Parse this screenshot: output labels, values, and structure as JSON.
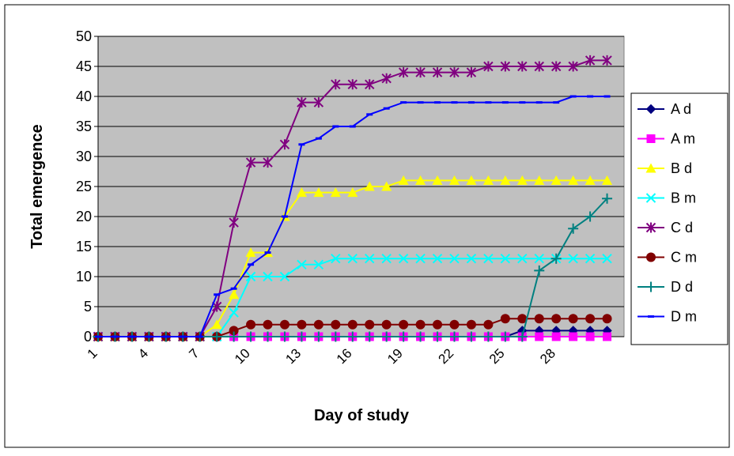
{
  "chart_data": {
    "type": "line",
    "title": "",
    "xlabel": "Day of study",
    "ylabel": "Total emergence",
    "x": [
      1,
      2,
      3,
      4,
      5,
      6,
      7,
      8,
      9,
      10,
      11,
      12,
      13,
      14,
      15,
      16,
      17,
      18,
      19,
      20,
      21,
      22,
      23,
      24,
      25,
      26,
      27,
      28,
      29,
      30,
      31
    ],
    "x_tick_labels": [
      "1",
      "4",
      "7",
      "10",
      "13",
      "16",
      "19",
      "22",
      "25",
      "28"
    ],
    "x_tick_values": [
      1,
      4,
      7,
      10,
      13,
      16,
      19,
      22,
      25,
      28
    ],
    "ylim": [
      0,
      50
    ],
    "y_ticks": [
      0,
      5,
      10,
      15,
      20,
      25,
      30,
      35,
      40,
      45,
      50
    ],
    "grid": "horizontal",
    "legend_position": "right",
    "plot_background": "#c0c0c0",
    "series": [
      {
        "name": "A d",
        "color": "#000080",
        "marker": "diamond",
        "values": [
          0,
          0,
          0,
          0,
          0,
          0,
          0,
          0,
          0,
          0,
          0,
          0,
          0,
          0,
          0,
          0,
          0,
          0,
          0,
          0,
          0,
          0,
          0,
          0,
          0,
          1,
          1,
          1,
          1,
          1,
          1
        ]
      },
      {
        "name": "A m",
        "color": "#ff00ff",
        "marker": "square",
        "values": [
          0,
          0,
          0,
          0,
          0,
          0,
          0,
          0,
          0,
          0,
          0,
          0,
          0,
          0,
          0,
          0,
          0,
          0,
          0,
          0,
          0,
          0,
          0,
          0,
          0,
          0,
          0,
          0,
          0,
          0,
          0
        ]
      },
      {
        "name": "B d",
        "color": "#ffff00",
        "marker": "triangle",
        "values": [
          0,
          0,
          0,
          0,
          0,
          0,
          0,
          2,
          7,
          14,
          14,
          20,
          24,
          24,
          24,
          24,
          25,
          25,
          26,
          26,
          26,
          26,
          26,
          26,
          26,
          26,
          26,
          26,
          26,
          26,
          26
        ]
      },
      {
        "name": "B m",
        "color": "#00ffff",
        "marker": "x",
        "values": [
          0,
          0,
          0,
          0,
          0,
          0,
          0,
          0,
          4,
          10,
          10,
          10,
          12,
          12,
          13,
          13,
          13,
          13,
          13,
          13,
          13,
          13,
          13,
          13,
          13,
          13,
          13,
          13,
          13,
          13,
          13
        ]
      },
      {
        "name": "C d",
        "color": "#800080",
        "marker": "asterisk",
        "values": [
          0,
          0,
          0,
          0,
          0,
          0,
          0,
          5,
          19,
          29,
          29,
          32,
          39,
          39,
          42,
          42,
          42,
          43,
          44,
          44,
          44,
          44,
          44,
          45,
          45,
          45,
          45,
          45,
          45,
          46,
          46
        ]
      },
      {
        "name": "C m",
        "color": "#800000",
        "marker": "circle",
        "values": [
          0,
          0,
          0,
          0,
          0,
          0,
          0,
          0,
          1,
          2,
          2,
          2,
          2,
          2,
          2,
          2,
          2,
          2,
          2,
          2,
          2,
          2,
          2,
          2,
          3,
          3,
          3,
          3,
          3,
          3,
          3
        ]
      },
      {
        "name": "D d",
        "color": "#008080",
        "marker": "plus",
        "values": [
          0,
          0,
          0,
          0,
          0,
          0,
          0,
          0,
          0,
          0,
          0,
          0,
          0,
          0,
          0,
          0,
          0,
          0,
          0,
          0,
          0,
          0,
          0,
          0,
          0,
          0,
          11,
          13,
          18,
          20,
          23
        ]
      },
      {
        "name": "D m",
        "color": "#0000ff",
        "marker": "dash",
        "values": [
          0,
          0,
          0,
          0,
          0,
          0,
          0,
          7,
          8,
          12,
          14,
          20,
          32,
          33,
          35,
          35,
          37,
          38,
          39,
          39,
          39,
          39,
          39,
          39,
          39,
          39,
          39,
          39,
          40,
          40,
          40
        ]
      }
    ]
  }
}
